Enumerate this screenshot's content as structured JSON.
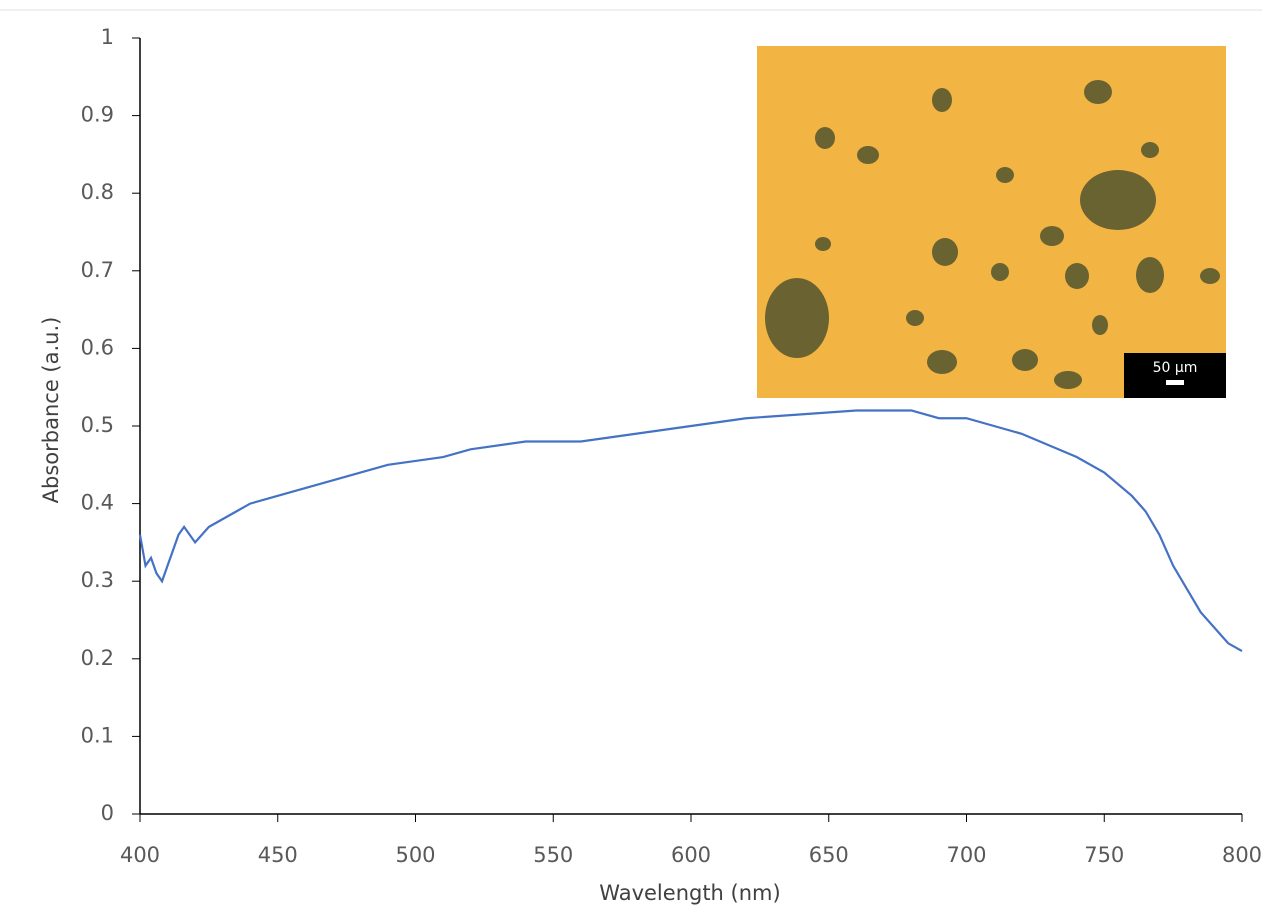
{
  "chart_data": {
    "type": "line",
    "x_label": "Wavelength (nm)",
    "y_label": "Absorbance (a.u.)",
    "x": [
      400,
      402,
      404,
      406,
      408,
      410,
      412,
      414,
      416,
      418,
      420,
      425,
      430,
      435,
      440,
      450,
      460,
      470,
      480,
      490,
      500,
      510,
      520,
      540,
      560,
      580,
      600,
      620,
      640,
      660,
      680,
      690,
      700,
      710,
      720,
      730,
      740,
      750,
      760,
      765,
      770,
      775,
      780,
      785,
      790,
      795,
      800
    ],
    "series": [
      {
        "color": "#4472c4",
        "values": [
          0.36,
          0.32,
          0.33,
          0.31,
          0.3,
          0.32,
          0.34,
          0.36,
          0.37,
          0.36,
          0.35,
          0.37,
          0.38,
          0.39,
          0.4,
          0.41,
          0.42,
          0.43,
          0.44,
          0.45,
          0.455,
          0.46,
          0.47,
          0.48,
          0.48,
          0.49,
          0.5,
          0.51,
          0.515,
          0.52,
          0.52,
          0.51,
          0.51,
          0.5,
          0.49,
          0.475,
          0.46,
          0.44,
          0.41,
          0.39,
          0.36,
          0.32,
          0.29,
          0.26,
          0.24,
          0.22,
          0.21
        ]
      }
    ],
    "xlim": [
      400,
      800
    ],
    "xticks": [
      400,
      450,
      500,
      550,
      600,
      650,
      700,
      750,
      800
    ],
    "ylim": [
      0,
      1
    ],
    "yticks": [
      0,
      0.1,
      0.2,
      0.3,
      0.4,
      0.5,
      0.6,
      0.7,
      0.8,
      0.9,
      1
    ],
    "annotations": [
      "50 µm"
    ]
  }
}
